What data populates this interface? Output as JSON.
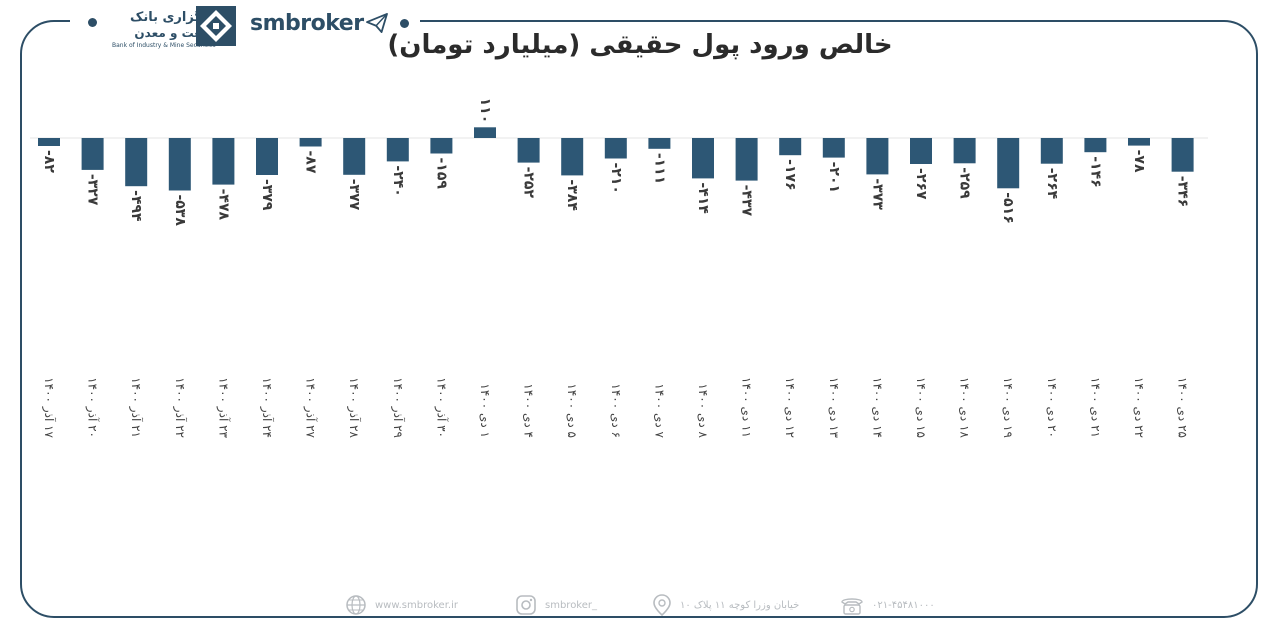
{
  "brand": {
    "bank_name_line1": "کارگزاری بانک",
    "bank_name_line2": "صنعت و معدن",
    "bank_name_en": "Bank of Industry & Mine Securities",
    "site_name": "smbroker",
    "primary_color": "#2d4e66"
  },
  "footer": {
    "website": "www.smbroker.ir",
    "instagram": "smbroker_",
    "address": "خیابان وزرا کوچه ۱۱ پلاک ۱۰",
    "phone": "۰۲۱-۴۵۴۸۱۰۰۰"
  },
  "chart_data": {
    "type": "bar",
    "title": "خالص ورود پول حقیقی (میلیارد تومان)",
    "categories": [
      "۱۷ آذر ۱۴۰۰",
      "۲۰ آذر ۱۴۰۰",
      "۲۱ آذر ۱۴۰۰",
      "۲۲ آذر ۱۴۰۰",
      "۲۳ آذر ۱۴۰۰",
      "۲۴ آذر ۱۴۰۰",
      "۲۷ آذر ۱۴۰۰",
      "۲۸ آذر ۱۴۰۰",
      "۲۹ آذر ۱۴۰۰",
      "۳۰ آذر ۱۴۰۰",
      "۱ دی ۱۴۰۰",
      "۴ دی ۱۴۰۰",
      "۵ دی ۱۴۰۰",
      "۶ دی ۱۴۰۰",
      "۷ دی ۱۴۰۰",
      "۸ دی ۱۴۰۰",
      "۱۱ دی ۱۴۰۰",
      "۱۲ دی ۱۴۰۰",
      "۱۳ دی ۱۴۰۰",
      "۱۴ دی ۱۴۰۰",
      "۱۵ دی ۱۴۰۰",
      "۱۸ دی ۱۴۰۰",
      "۱۹ دی ۱۴۰۰",
      "۲۰ دی ۱۴۰۰",
      "۲۱ دی ۱۴۰۰",
      "۲۲ دی ۱۴۰۰",
      "۲۵ دی ۱۴۰۰"
    ],
    "values": [
      -82,
      -327,
      -494,
      -538,
      -478,
      -379,
      -87,
      -377,
      -240,
      -159,
      110,
      -252,
      -384,
      -210,
      -111,
      -414,
      -437,
      -176,
      -201,
      -373,
      -267,
      -259,
      -516,
      -264,
      -146,
      -78,
      -346
    ],
    "data_labels": [
      "-۸۲",
      "-۳۲۷",
      "-۴۹۴",
      "-۵۳۸",
      "-۴۷۸",
      "-۳۷۹",
      "-۸۷",
      "-۳۷۷",
      "-۲۴۰",
      "-۱۵۹",
      "۱۱۰",
      "-۲۵۲",
      "-۳۸۴",
      "-۲۱۰",
      "-۱۱۱",
      "-۴۱۴",
      "-۴۳۷",
      "-۱۷۶",
      "-۲۰۱",
      "-۳۷۳",
      "-۲۶۷",
      "-۲۵۹",
      "-۵۱۶",
      "-۲۶۴",
      "-۱۴۶",
      "-۷۸",
      "-۳۴۶"
    ],
    "bar_color": "#2d5775",
    "xlabel": "",
    "ylabel": "",
    "grid": false,
    "legend": "none"
  }
}
